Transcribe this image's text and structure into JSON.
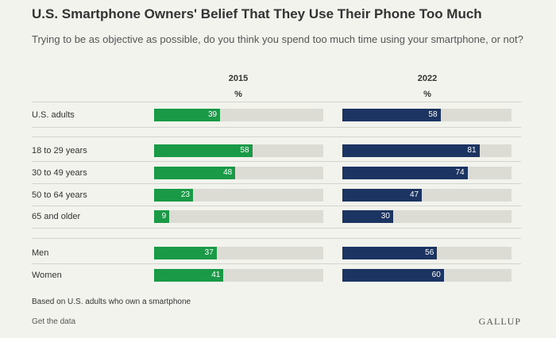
{
  "colors": {
    "y2015": "#1a9a47",
    "y2022": "#1c3461",
    "track": "#dcdcd4"
  },
  "chart_data": {
    "type": "bar",
    "orientation": "horizontal",
    "title": "U.S. Smartphone Owners' Belief That They Use Their Phone Too Much",
    "subtitle": "Trying to be as objective as possible, do you think you spend too much time using your smartphone, or not?",
    "unit_label": "%",
    "xlim": [
      0,
      100
    ],
    "categories": [
      "U.S. adults",
      "18 to 29 years",
      "30 to 49 years",
      "50 to 64 years",
      "65 and older",
      "Men",
      "Women"
    ],
    "series": [
      {
        "name": "2015",
        "values": [
          39,
          58,
          48,
          23,
          9,
          37,
          41
        ]
      },
      {
        "name": "2022",
        "values": [
          58,
          81,
          74,
          47,
          30,
          56,
          60
        ]
      }
    ]
  },
  "footer": {
    "note": "Based on U.S. adults who own a smartphone",
    "link": "Get the data",
    "brand": "GALLUP"
  }
}
